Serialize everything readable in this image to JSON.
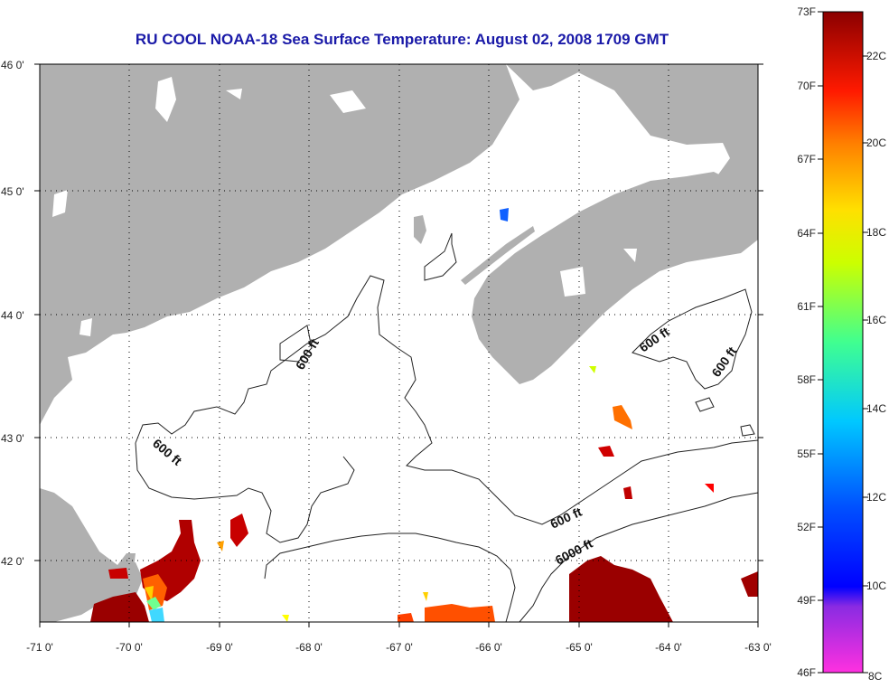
{
  "title": "RU COOL  NOAA-18  Sea Surface Temperature:  August 02, 2008 1709 GMT",
  "lon_ticks": [
    "-71 0'",
    "-70 0'",
    "-69 0'",
    "-68 0'",
    "-67 0'",
    "-66 0'",
    "-65 0'",
    "-64 0'",
    "-63 0'"
  ],
  "lat_ticks": [
    "46 0'",
    "45 0'",
    "44 0'",
    "43 0'",
    "42 0'"
  ],
  "contour_labels": [
    "600 ft",
    "600 ft",
    "600 ft",
    "600 ft",
    "600 ft",
    "6000 ft"
  ],
  "colorbar": {
    "fahrenheit": [
      "73F",
      "70F",
      "67F",
      "64F",
      "61F",
      "58F",
      "55F",
      "52F",
      "49F",
      "46F"
    ],
    "celsius": [
      "22C",
      "20C",
      "18C",
      "16C",
      "14C",
      "12C",
      "10C",
      "8C"
    ]
  },
  "colors": {
    "title": "#1a1aa8",
    "land": "#b0b0b0",
    "water": "#ffffff",
    "grid": "#000000"
  }
}
